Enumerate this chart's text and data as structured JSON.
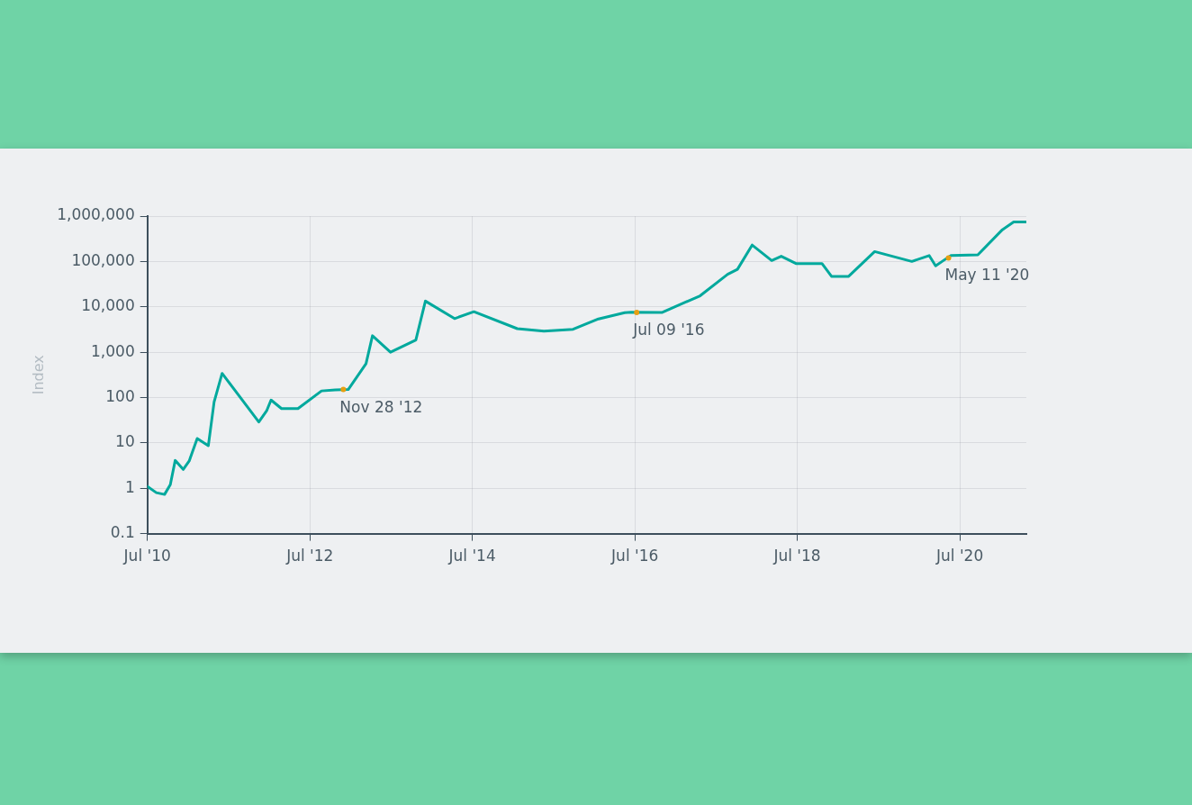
{
  "chart_data": {
    "type": "line",
    "ylabel": "Index",
    "log": "y",
    "grid": true,
    "marker": "none",
    "line_style": "solid",
    "x": [
      "2010-07-01",
      "2010-08-10",
      "2010-09-16",
      "2010-10-12",
      "2010-11-03",
      "2010-12-09",
      "2011-01-05",
      "2011-02-10",
      "2011-04-01",
      "2011-04-27",
      "2011-06-02",
      "2011-11-14",
      "2011-12-20",
      "2012-01-08",
      "2012-02-24",
      "2012-05-08",
      "2012-08-22",
      "2012-10-23",
      "2012-12-20",
      "2013-03-10",
      "2013-04-08",
      "2013-06-28",
      "2013-10-20",
      "2013-12-02",
      "2014-04-12",
      "2014-07-08",
      "2015-01-19",
      "2015-05-19",
      "2015-09-27",
      "2016-01-19",
      "2016-05-16",
      "2016-06-14",
      "2016-10-30",
      "2017-04-20",
      "2017-08-22",
      "2017-10-05",
      "2017-12-10",
      "2018-03-08",
      "2018-04-20",
      "2018-06-25",
      "2018-10-20",
      "2018-12-02",
      "2019-02-17",
      "2019-06-14",
      "2019-11-28",
      "2020-02-14",
      "2020-03-14",
      "2020-04-12",
      "2020-05-22",
      "2020-09-20",
      "2021-01-08",
      "2021-02-28",
      "2021-04-26"
    ],
    "series": [
      {
        "color": "#00a99d",
        "values": [
          1.1,
          0.8,
          0.73,
          1.2,
          4.1,
          2.6,
          4,
          12.5,
          8.7,
          80,
          340,
          29,
          52,
          88,
          57,
          57,
          140,
          147,
          150,
          560,
          2300,
          1000,
          1850,
          13400,
          5500,
          7800,
          3300,
          2900,
          3200,
          5400,
          7400,
          7600,
          7500,
          17500,
          52000,
          67000,
          230000,
          105000,
          130000,
          90000,
          90000,
          47000,
          47000,
          165000,
          100000,
          135000,
          80000,
          100000,
          135000,
          140000,
          500000,
          740000,
          740000
        ]
      }
    ],
    "xlim": [
      "2010-07-01",
      "2021-04-26"
    ],
    "xticks": [
      {
        "value": "2010-07-01",
        "label": "Jul '10"
      },
      {
        "value": "2012-07-01",
        "label": "Jul '12"
      },
      {
        "value": "2014-07-01",
        "label": "Jul '14"
      },
      {
        "value": "2016-07-01",
        "label": "Jul '16"
      },
      {
        "value": "2018-07-01",
        "label": "Jul '18"
      },
      {
        "value": "2020-07-01",
        "label": "Jul '20"
      }
    ],
    "ylim": [
      0.1,
      1000000
    ],
    "yticks": [
      0.1,
      1,
      10,
      100,
      {
        "value": 1000,
        "label": "1,000"
      },
      {
        "value": 10000,
        "label": "10,000"
      },
      {
        "value": 100000,
        "label": "100,000"
      },
      {
        "value": 1000000,
        "label": "1,000,000"
      }
    ],
    "annotations": [
      {
        "text": "Nov 28 '12",
        "x": "2012-11-28",
        "y": 150
      },
      {
        "text": "Jul 09 '16",
        "x": "2016-07-09",
        "y": 7500
      },
      {
        "text": "May 11 '20",
        "x": "2020-05-11",
        "y": 120000
      }
    ]
  }
}
